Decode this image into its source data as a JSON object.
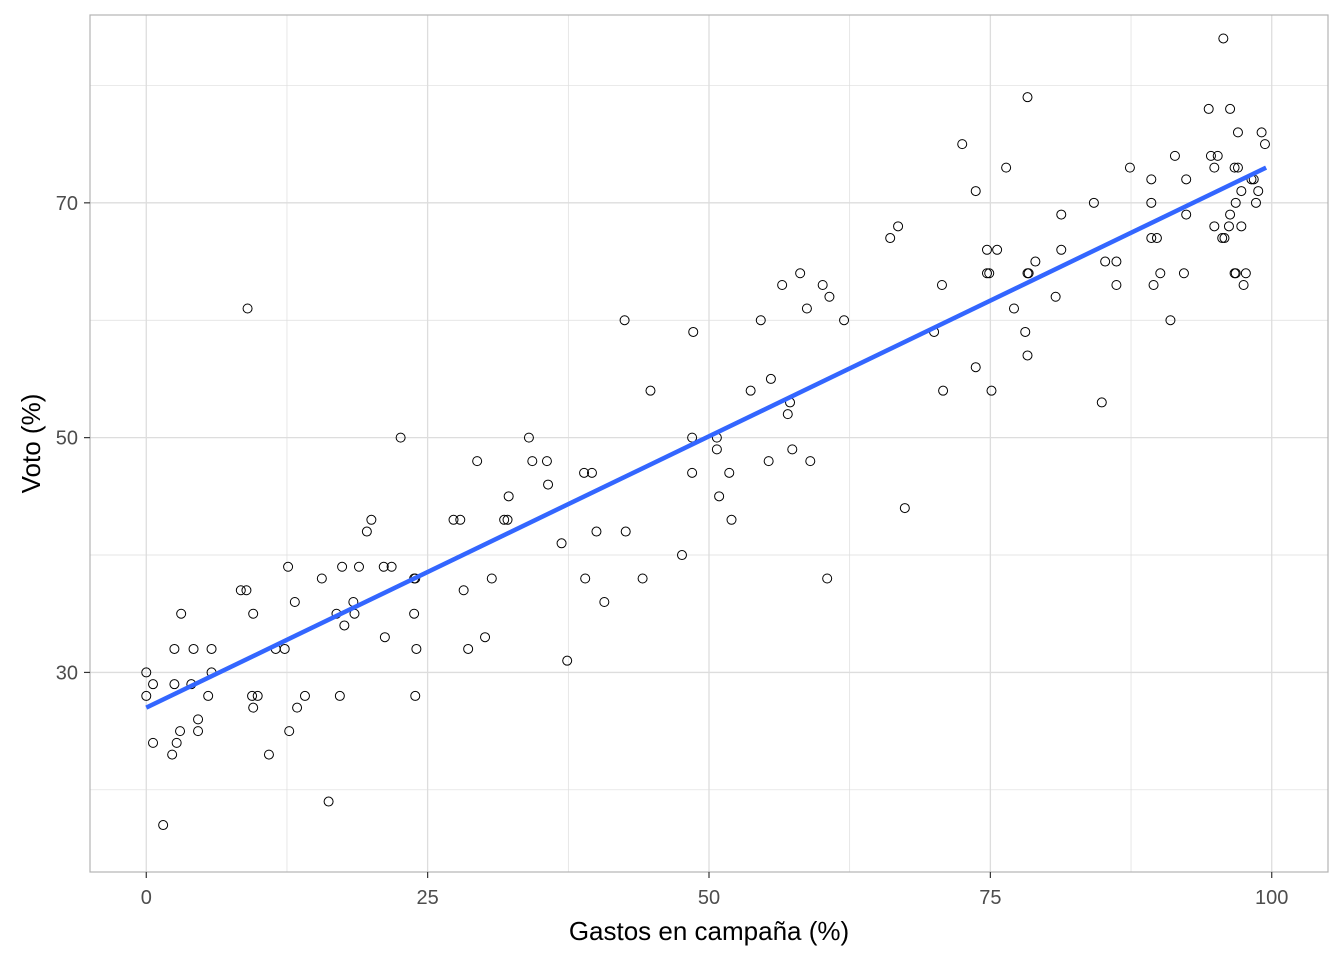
{
  "chart_data": {
    "type": "scatter",
    "title": "",
    "xlabel": "Gastos en campaña (%)",
    "ylabel": "Voto (%)",
    "xlim": [
      -5,
      105
    ],
    "ylim": [
      13,
      86
    ],
    "x_ticks": [
      0,
      25,
      50,
      75,
      100
    ],
    "x_tick_labels": [
      "0",
      "25",
      "50",
      "75",
      "100"
    ],
    "y_ticks": [
      30,
      50,
      70
    ],
    "y_tick_labels": [
      "30",
      "50",
      "70"
    ],
    "y_minor_gridlines": [
      20,
      40,
      60,
      80
    ],
    "x_minor_gridlines": [
      12.5,
      37.5,
      62.5,
      87.5
    ],
    "grid": true,
    "colors": {
      "points": "#000000",
      "trend_line": "#3366FF",
      "grid": "#dddddd",
      "panel_border": "#b3b3b3"
    },
    "trend_line": {
      "type": "linear",
      "x": [
        0,
        99.5
      ],
      "y": [
        27.0,
        73.0
      ]
    },
    "points": [
      [
        0.0,
        30
      ],
      [
        0.0,
        28
      ],
      [
        0.6,
        29
      ],
      [
        0.6,
        24
      ],
      [
        1.5,
        17
      ],
      [
        2.3,
        23
      ],
      [
        2.5,
        29
      ],
      [
        2.5,
        32
      ],
      [
        2.7,
        24
      ],
      [
        3.0,
        25
      ],
      [
        3.1,
        35
      ],
      [
        4.0,
        29
      ],
      [
        4.2,
        32
      ],
      [
        4.6,
        25
      ],
      [
        4.6,
        26
      ],
      [
        5.5,
        28
      ],
      [
        5.8,
        30
      ],
      [
        5.8,
        32
      ],
      [
        8.4,
        37
      ],
      [
        8.9,
        37
      ],
      [
        9.0,
        61
      ],
      [
        9.4,
        28
      ],
      [
        9.5,
        35
      ],
      [
        9.5,
        27
      ],
      [
        9.9,
        28
      ],
      [
        10.9,
        23
      ],
      [
        11.5,
        32
      ],
      [
        12.6,
        39
      ],
      [
        12.7,
        25
      ],
      [
        12.3,
        32
      ],
      [
        13.2,
        36
      ],
      [
        13.4,
        27
      ],
      [
        14.1,
        28
      ],
      [
        15.6,
        38
      ],
      [
        16.2,
        19
      ],
      [
        16.9,
        35
      ],
      [
        17.2,
        28
      ],
      [
        17.4,
        39
      ],
      [
        17.6,
        34
      ],
      [
        18.4,
        36
      ],
      [
        18.5,
        35
      ],
      [
        18.9,
        39
      ],
      [
        19.6,
        42
      ],
      [
        20.0,
        43
      ],
      [
        21.1,
        39
      ],
      [
        21.2,
        33
      ],
      [
        21.8,
        39
      ],
      [
        22.6,
        50
      ],
      [
        23.8,
        38
      ],
      [
        23.9,
        38
      ],
      [
        23.8,
        35
      ],
      [
        24.0,
        32
      ],
      [
        23.9,
        28
      ],
      [
        27.3,
        43
      ],
      [
        27.9,
        43
      ],
      [
        28.2,
        37
      ],
      [
        28.6,
        32
      ],
      [
        29.4,
        48
      ],
      [
        30.1,
        33
      ],
      [
        30.7,
        38
      ],
      [
        31.8,
        43
      ],
      [
        32.1,
        43
      ],
      [
        32.2,
        45
      ],
      [
        34.0,
        50
      ],
      [
        34.3,
        48
      ],
      [
        35.6,
        48
      ],
      [
        35.7,
        46
      ],
      [
        36.9,
        41
      ],
      [
        37.4,
        31
      ],
      [
        38.9,
        47
      ],
      [
        39.0,
        38
      ],
      [
        39.6,
        47
      ],
      [
        40.0,
        42
      ],
      [
        40.7,
        36
      ],
      [
        42.5,
        60
      ],
      [
        42.6,
        42
      ],
      [
        44.1,
        38
      ],
      [
        44.8,
        54
      ],
      [
        47.6,
        40
      ],
      [
        48.5,
        50
      ],
      [
        48.6,
        59
      ],
      [
        48.5,
        47
      ],
      [
        50.7,
        50
      ],
      [
        50.7,
        49
      ],
      [
        50.9,
        45
      ],
      [
        51.8,
        47
      ],
      [
        52.0,
        43
      ],
      [
        53.7,
        54
      ],
      [
        54.6,
        60
      ],
      [
        55.3,
        48
      ],
      [
        55.5,
        55
      ],
      [
        56.5,
        63
      ],
      [
        57.0,
        52
      ],
      [
        57.2,
        53
      ],
      [
        57.4,
        49
      ],
      [
        58.1,
        64
      ],
      [
        58.7,
        61
      ],
      [
        59.0,
        48
      ],
      [
        60.1,
        63
      ],
      [
        60.5,
        38
      ],
      [
        60.7,
        62
      ],
      [
        62.0,
        60
      ],
      [
        66.1,
        67
      ],
      [
        66.8,
        68
      ],
      [
        67.4,
        44
      ],
      [
        70.0,
        59
      ],
      [
        70.7,
        63
      ],
      [
        70.8,
        54
      ],
      [
        72.5,
        75
      ],
      [
        73.7,
        71
      ],
      [
        73.7,
        56
      ],
      [
        74.7,
        66
      ],
      [
        74.7,
        64
      ],
      [
        74.9,
        64
      ],
      [
        75.1,
        54
      ],
      [
        75.6,
        66
      ],
      [
        76.4,
        73
      ],
      [
        77.1,
        61
      ],
      [
        78.1,
        59
      ],
      [
        78.3,
        64
      ],
      [
        78.4,
        64
      ],
      [
        78.3,
        57
      ],
      [
        78.3,
        79
      ],
      [
        79.0,
        65
      ],
      [
        80.8,
        62
      ],
      [
        81.3,
        66
      ],
      [
        81.3,
        69
      ],
      [
        84.2,
        70
      ],
      [
        84.9,
        53
      ],
      [
        85.2,
        65
      ],
      [
        86.2,
        65
      ],
      [
        86.2,
        63
      ],
      [
        87.4,
        73
      ],
      [
        89.3,
        72
      ],
      [
        89.3,
        70
      ],
      [
        89.3,
        67
      ],
      [
        89.5,
        63
      ],
      [
        89.8,
        67
      ],
      [
        90.1,
        64
      ],
      [
        91.0,
        60
      ],
      [
        91.4,
        74
      ],
      [
        92.2,
        64
      ],
      [
        92.4,
        72
      ],
      [
        92.4,
        69
      ],
      [
        94.4,
        78
      ],
      [
        94.6,
        74
      ],
      [
        94.9,
        68
      ],
      [
        94.9,
        73
      ],
      [
        95.2,
        74
      ],
      [
        95.6,
        67
      ],
      [
        95.7,
        84
      ],
      [
        95.8,
        67
      ],
      [
        96.2,
        68
      ],
      [
        96.3,
        69
      ],
      [
        96.3,
        78
      ],
      [
        96.7,
        73
      ],
      [
        96.7,
        64
      ],
      [
        96.8,
        64
      ],
      [
        96.8,
        70
      ],
      [
        97.0,
        76
      ],
      [
        97.0,
        73
      ],
      [
        97.3,
        68
      ],
      [
        97.3,
        71
      ],
      [
        97.5,
        63
      ],
      [
        97.7,
        64
      ],
      [
        98.2,
        72
      ],
      [
        98.4,
        72
      ],
      [
        98.6,
        70
      ],
      [
        98.8,
        71
      ],
      [
        99.1,
        76
      ],
      [
        99.4,
        75
      ]
    ]
  }
}
